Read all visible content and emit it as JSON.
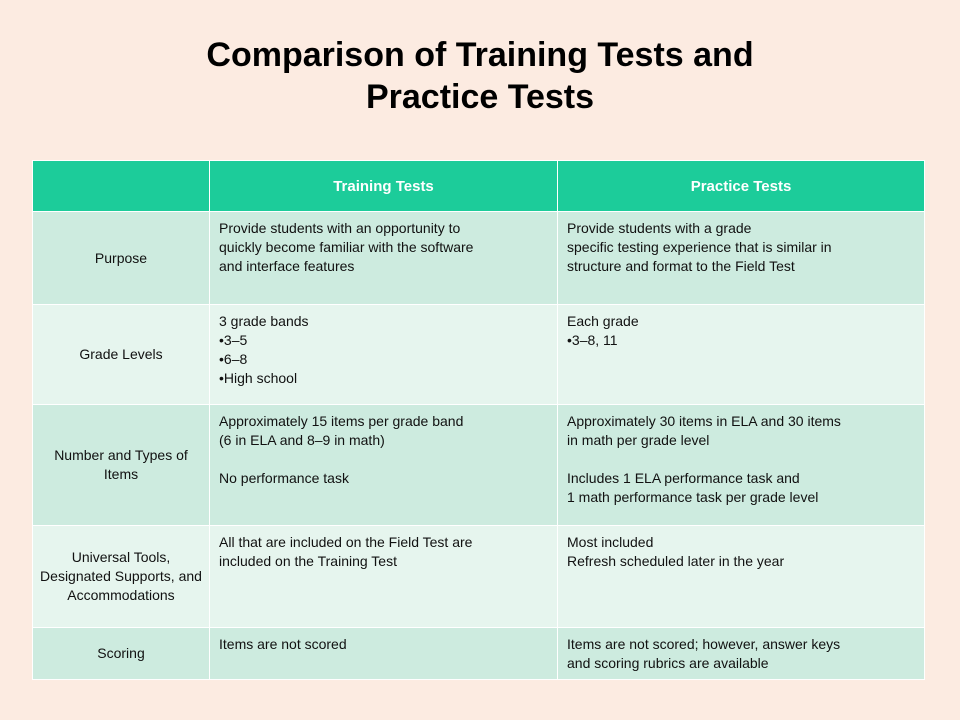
{
  "title": {
    "line1": "Comparison of Training Tests and",
    "line2": "Practice Tests"
  },
  "table": {
    "headers": [
      "",
      "Training Tests",
      "Practice Tests"
    ],
    "rows": [
      {
        "label": "Purpose",
        "training": [
          "Provide students with an opportunity to",
          "quickly become familiar with the software",
          "and interface features"
        ],
        "practice": [
          "Provide students with a grade",
          "specific testing experience that is similar in",
          "structure and format to the Field Test"
        ]
      },
      {
        "label": "Grade Levels",
        "training": [
          "3 grade bands",
          "3–5",
          "6–8",
          "High school"
        ],
        "practice": [
          "Each grade",
          "3–8, 11"
        ]
      },
      {
        "label": "Number and Types of Items",
        "training": [
          "Approximately 15 items per grade band",
          "(6 in ELA and 8–9 in math)",
          "No performance task"
        ],
        "practice": [
          "Approximately 30 items in ELA and 30 items",
          "in math per grade level",
          "Includes 1 ELA performance task and",
          "1 math performance task per grade level"
        ]
      },
      {
        "label": "Universal Tools, Designated Supports, and Accommodations",
        "training": [
          "All that are included on the Field Test are",
          "included on the Training Test"
        ],
        "practice": [
          "Most included",
          "Refresh scheduled later in the year"
        ]
      },
      {
        "label": "Scoring",
        "training": [
          "Items are not scored"
        ],
        "practice": [
          "Items are not scored; however, answer keys",
          "and scoring rubrics are available"
        ]
      }
    ]
  },
  "colors": {
    "background": "#fcebe1",
    "header": "#1ccc9a",
    "row_dark": "#cdebdf",
    "row_light": "#e6f5ee"
  }
}
